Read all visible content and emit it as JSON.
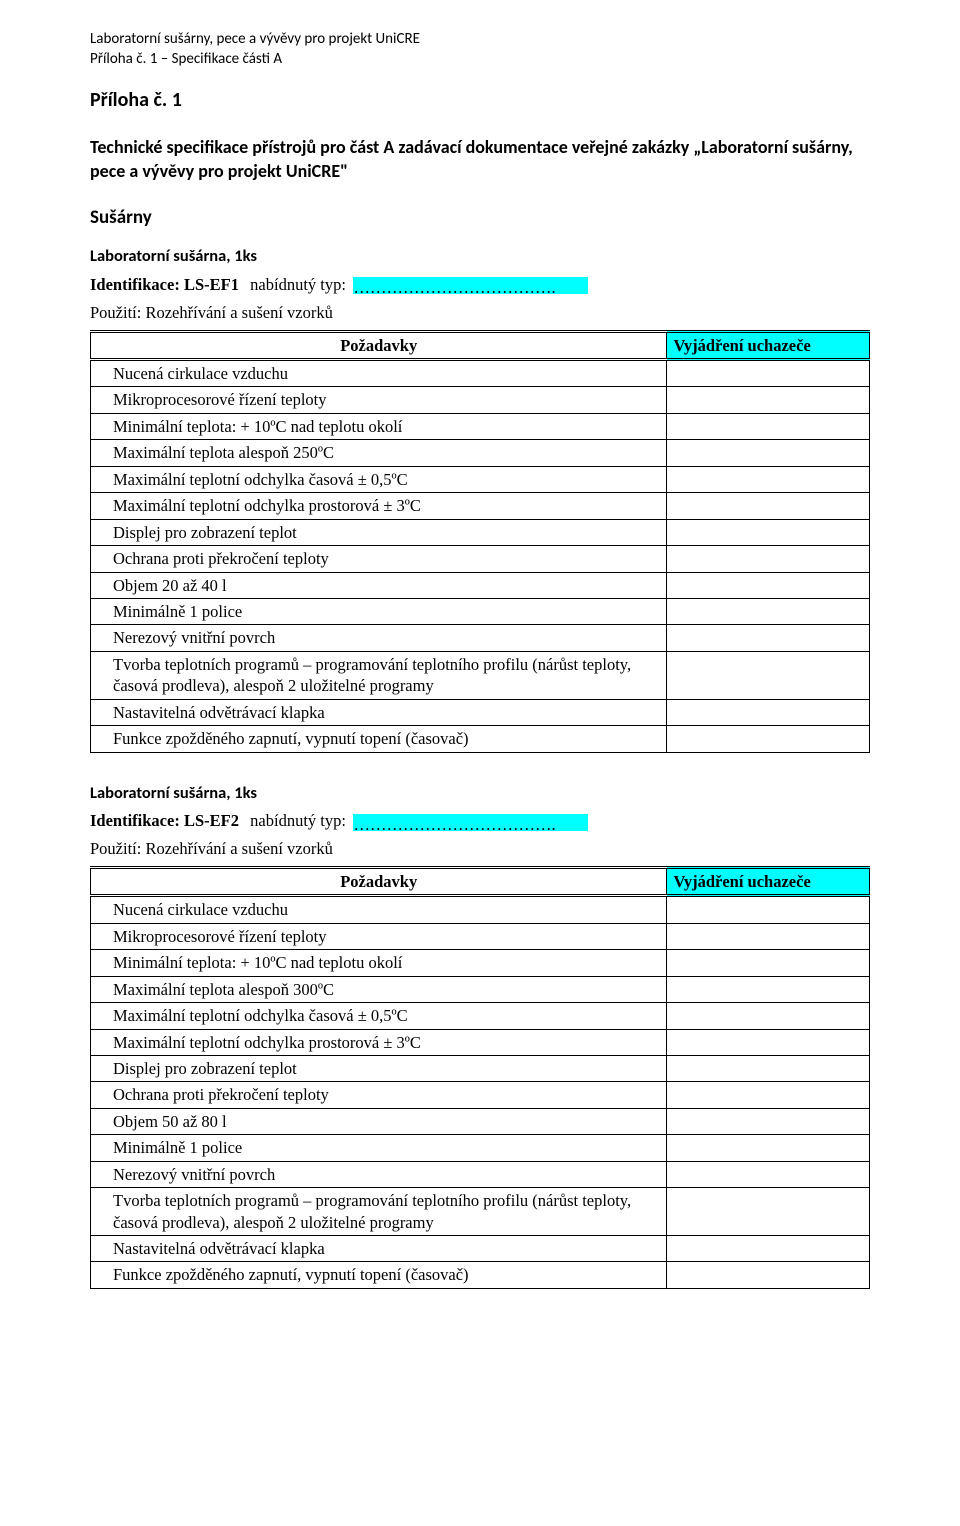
{
  "header": {
    "line1": "Laboratorní sušárny, pece a vývěvy pro projekt UniCRE",
    "line2": "Příloha č. 1 – Specifikace části  A"
  },
  "attachment_title": "Příloha č. 1",
  "spec_title": "Technické specifikace přístrojů pro část A zadávací dokumentace veřejné zakázky „Laboratorní sušárny, pece a vývěvy pro projekt UniCRE\"",
  "section_title": "Sušárny",
  "table_headers": {
    "requirements": "Požadavky",
    "expression": "Vyjádření uchazeče"
  },
  "labels": {
    "ident_prefix": "Identifikace: ",
    "offered_type": "nabídnutý typ:",
    "usage_prefix": "Použití: "
  },
  "item1": {
    "title": "Laboratorní sušárna, 1ks",
    "ident": "LS-EF1",
    "type_blank": "……………………………….",
    "usage": "Rozehřívání a sušení vzorků",
    "rows": [
      "Nucená cirkulace vzduchu",
      "Mikroprocesorové řízení teploty",
      "Minimální teplota: + 10ºC nad teplotu okolí",
      "Maximální teplota alespoň 250ºC",
      "Maximální teplotní odchylka časová ± 0,5ºC",
      "Maximální teplotní odchylka prostorová ± 3ºC",
      "Displej pro zobrazení teplot",
      "Ochrana proti překročení teploty",
      "Objem 20 až 40 l",
      "Minimálně 1 police",
      "Nerezový vnitřní povrch",
      "Tvorba teplotních programů – programování teplotního profilu (nárůst teploty, časová prodleva), alespoň 2 uložitelné programy",
      "Nastavitelná odvětrávací klapka",
      "Funkce zpožděného zapnutí, vypnutí topení (časovač)"
    ]
  },
  "item2": {
    "title": "Laboratorní sušárna, 1ks",
    "ident": "LS-EF2",
    "type_blank": "……………………………….",
    "usage": "Rozehřívání a sušení vzorků",
    "rows": [
      "Nucená cirkulace vzduchu",
      "Mikroprocesorové řízení teploty",
      "Minimální teplota: + 10ºC nad teplotu okolí",
      "Maximální teplota alespoň 300ºC",
      "Maximální teplotní odchylka časová ± 0,5ºC",
      "Maximální teplotní odchylka prostorová ± 3ºC",
      "Displej pro zobrazení teplot",
      "Ochrana proti překročení teploty",
      "Objem 50 až 80 l",
      "Minimálně 1 police",
      "Nerezový vnitřní povrch",
      "Tvorba teplotních programů – programování teplotního profilu (nárůst teploty, časová prodleva), alespoň 2 uložitelné programy",
      "Nastavitelná odvětrávací klapka",
      "Funkce zpožděného zapnutí, vypnutí topení (časovač)"
    ]
  }
}
